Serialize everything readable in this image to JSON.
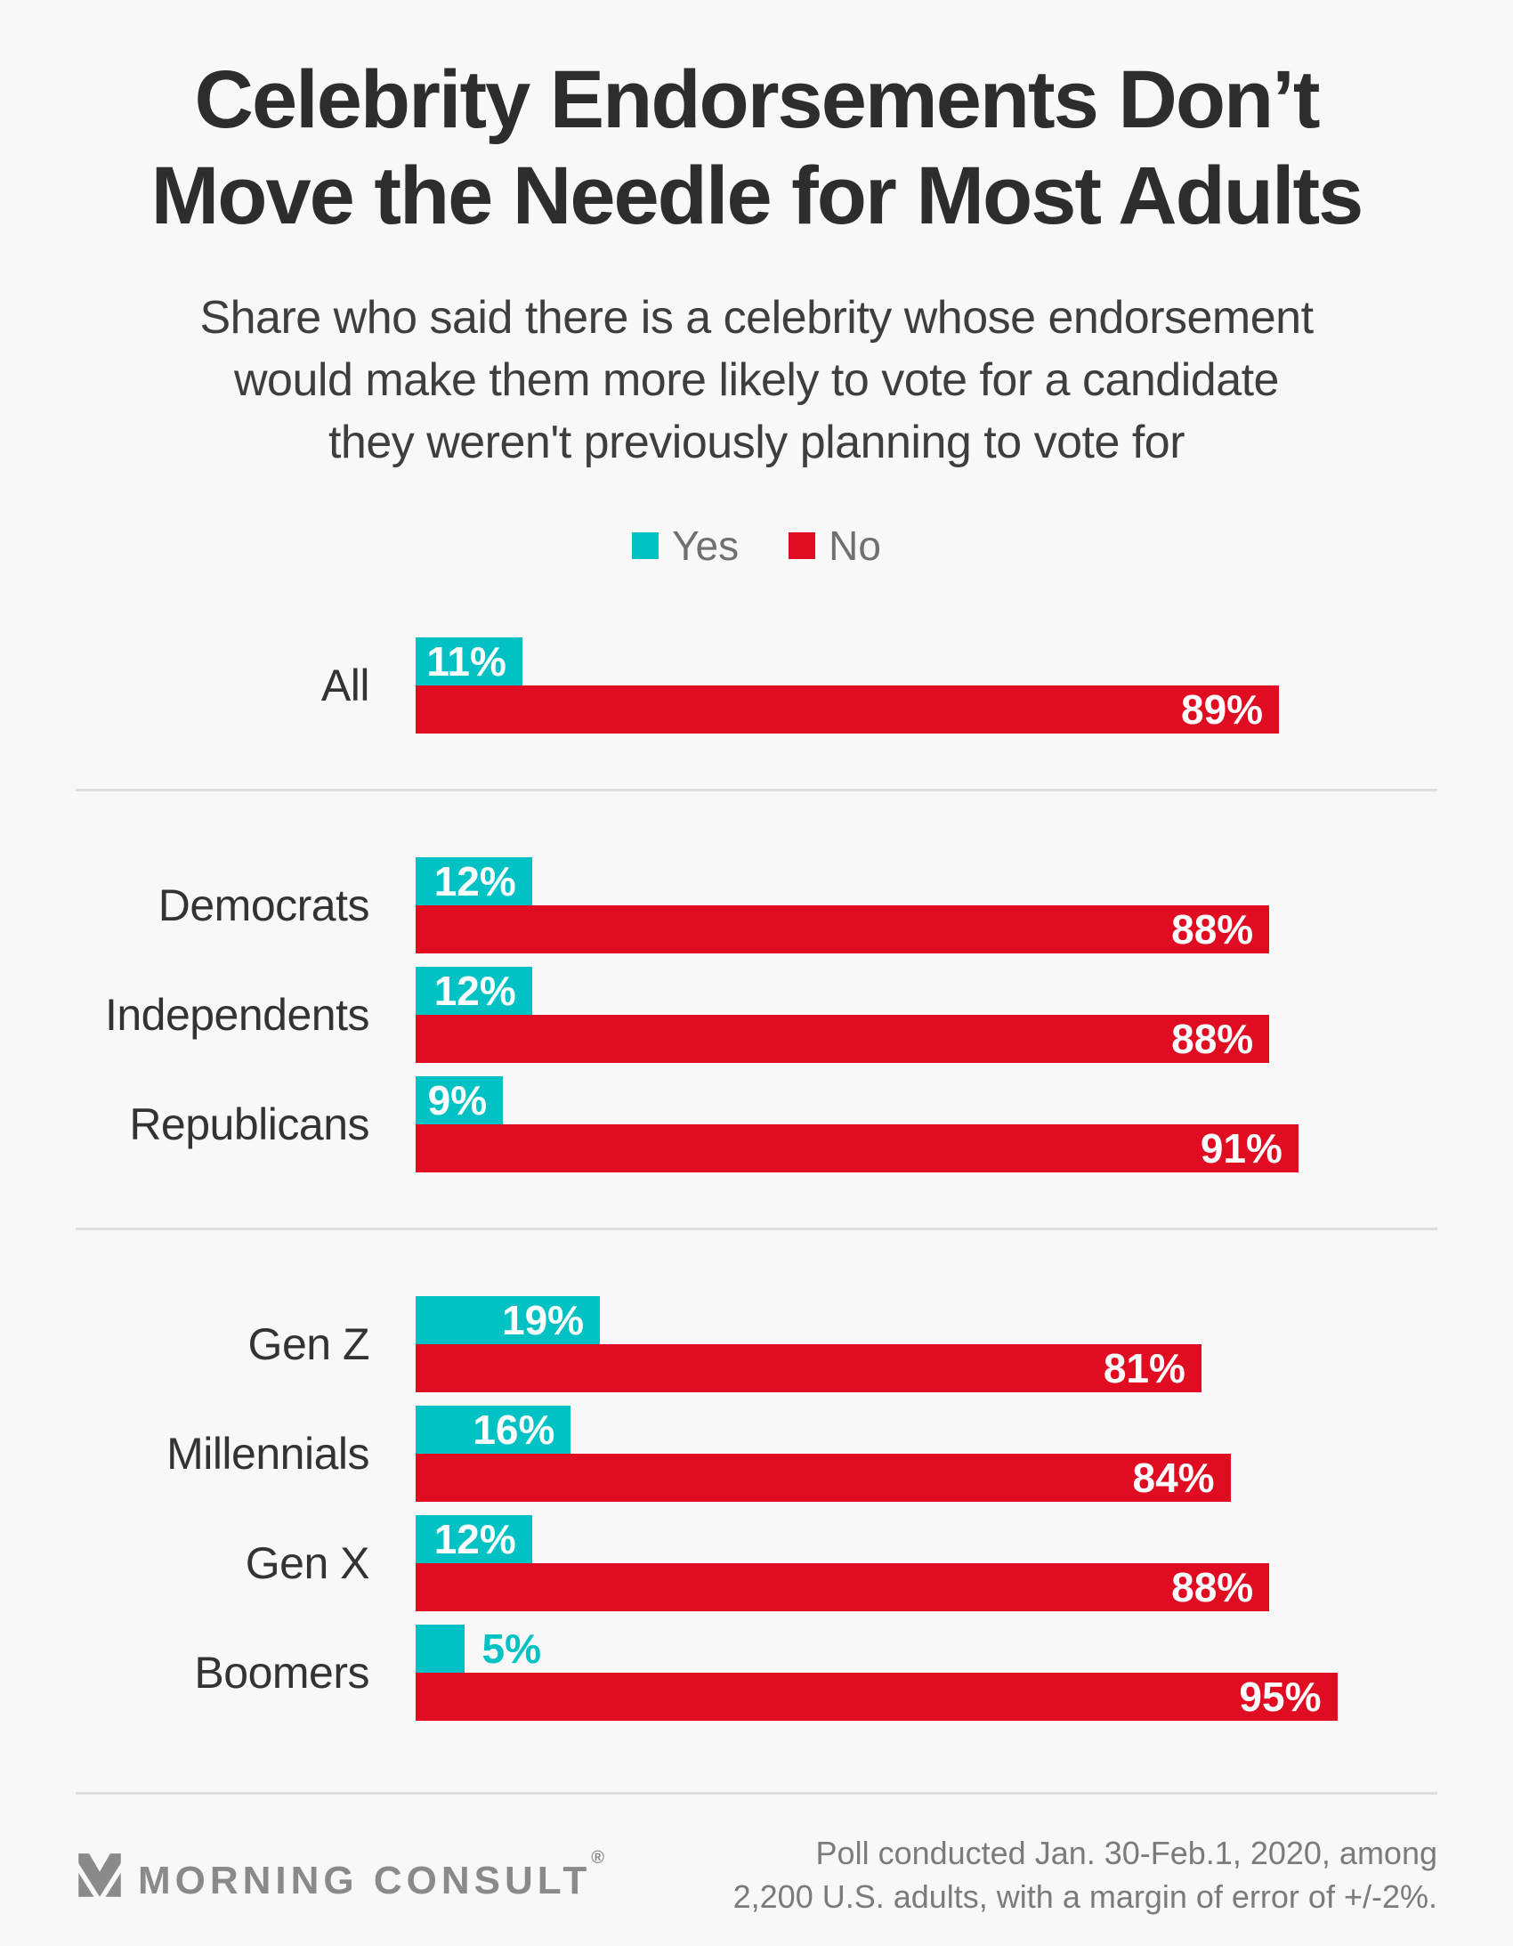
{
  "page": {
    "background": "#F8F8F8"
  },
  "title": {
    "lines": [
      "Celebrity Endorsements Don’t",
      "Move the Needle for Most Adults"
    ]
  },
  "subtitle": {
    "lines": [
      "Share who said there is a celebrity whose endorsement",
      "would make them more likely to vote for a candidate",
      "they weren't previously planning to vote for"
    ]
  },
  "chart_data": {
    "type": "bar",
    "orientation": "horizontal",
    "unit": "%",
    "value_range": [
      0,
      100
    ],
    "grid": false,
    "legend_position": "top-center",
    "legend": [
      {
        "name": "Yes",
        "color": "#00C2C4"
      },
      {
        "name": "No",
        "color": "#E00C22"
      }
    ],
    "groups": [
      {
        "rows": [
          {
            "category": "All",
            "yes": 11,
            "no": 89,
            "yes_label": "11%",
            "no_label": "89%"
          }
        ]
      },
      {
        "rows": [
          {
            "category": "Democrats",
            "yes": 12,
            "no": 88,
            "yes_label": "12%",
            "no_label": "88%"
          },
          {
            "category": "Independents",
            "yes": 12,
            "no": 88,
            "yes_label": "12%",
            "no_label": "88%"
          },
          {
            "category": "Republicans",
            "yes": 9,
            "no": 91,
            "yes_label": "9%",
            "no_label": "91%"
          }
        ]
      },
      {
        "rows": [
          {
            "category": "Gen Z",
            "yes": 19,
            "no": 81,
            "yes_label": "19%",
            "no_label": "81%"
          },
          {
            "category": "Millennials",
            "yes": 16,
            "no": 84,
            "yes_label": "16%",
            "no_label": "84%"
          },
          {
            "category": "Gen X",
            "yes": 12,
            "no": 88,
            "yes_label": "12%",
            "no_label": "88%"
          },
          {
            "category": "Boomers",
            "yes": 5,
            "no": 95,
            "yes_label": "5%",
            "no_label": "95%"
          }
        ]
      }
    ]
  },
  "footer": {
    "brand": "MORNING CONSULT",
    "registered_mark": "®",
    "note_lines": [
      "Poll conducted Jan. 30-Feb.1, 2020, among",
      "2,200 U.S. adults, with a margin of error of +/-2%."
    ]
  },
  "colors": {
    "yes": "#00C2C4",
    "no": "#E00C22",
    "title_text": "#2D2D2D",
    "subtitle_text": "#3E3E3E",
    "category_label_text": "#333333",
    "legend_text": "#707070",
    "bar_value_text": "#FFFFFF",
    "divider": "#DEDEDE",
    "brand_gray": "#8A8A8A",
    "footnote_text": "#7B7B7B",
    "background": "#F8F8F8"
  }
}
